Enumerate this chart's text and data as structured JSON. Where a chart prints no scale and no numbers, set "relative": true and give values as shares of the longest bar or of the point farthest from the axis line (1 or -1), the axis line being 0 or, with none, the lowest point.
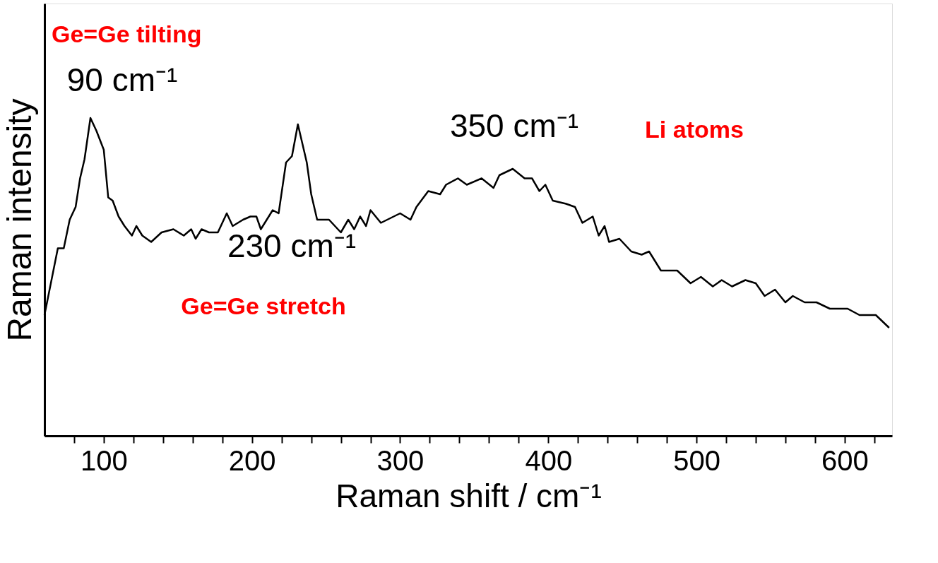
{
  "chart_data": {
    "type": "line",
    "relative": true,
    "xlabel": "Raman shift / cm⁻¹",
    "ylabel": "Raman intensity",
    "xlim": [
      60,
      632
    ],
    "xticks": [
      {
        "value": 80,
        "label": null
      },
      100,
      {
        "value": 120,
        "label": null
      },
      {
        "value": 140,
        "label": null
      },
      {
        "value": 160,
        "label": null
      },
      {
        "value": 180,
        "label": null
      },
      200,
      {
        "value": 220,
        "label": null
      },
      {
        "value": 240,
        "label": null
      },
      {
        "value": 260,
        "label": null
      },
      {
        "value": 280,
        "label": null
      },
      300,
      {
        "value": 320,
        "label": null
      },
      {
        "value": 340,
        "label": null
      },
      {
        "value": 360,
        "label": null
      },
      {
        "value": 380,
        "label": null
      },
      400,
      {
        "value": 420,
        "label": null
      },
      {
        "value": 440,
        "label": null
      },
      {
        "value": 460,
        "label": null
      },
      {
        "value": 480,
        "label": null
      },
      500,
      {
        "value": 520,
        "label": null
      },
      {
        "value": 540,
        "label": null
      },
      {
        "value": 560,
        "label": null
      },
      {
        "value": 580,
        "label": null
      },
      600,
      {
        "value": 620,
        "label": null
      }
    ],
    "x": [
      60,
      69,
      73,
      77,
      81,
      84,
      87,
      91,
      95,
      100,
      103,
      106,
      110,
      114,
      119,
      122,
      126,
      132,
      139,
      147,
      154,
      159,
      162,
      166,
      171,
      177,
      183,
      187,
      194,
      199,
      203,
      206,
      214,
      218,
      223,
      227,
      231,
      234,
      237,
      240,
      244,
      252,
      256,
      260,
      265,
      269,
      273,
      277,
      280,
      287,
      300,
      307,
      311,
      319,
      327,
      331,
      339,
      345,
      355,
      363,
      367,
      376,
      384,
      389,
      394,
      398,
      403,
      412,
      418,
      423,
      430,
      434,
      438,
      441,
      448,
      456,
      463,
      468,
      476,
      487,
      496,
      503,
      511,
      517,
      524,
      533,
      540,
      546,
      553,
      560,
      565,
      573,
      581,
      590,
      602,
      610,
      621,
      630
    ],
    "series": [
      {
        "color": "#000000",
        "values": [
          0.38,
          0.59,
          0.59,
          0.68,
          0.72,
          0.81,
          0.87,
          1.0,
          0.96,
          0.9,
          0.75,
          0.74,
          0.69,
          0.66,
          0.63,
          0.66,
          0.63,
          0.61,
          0.64,
          0.65,
          0.63,
          0.65,
          0.62,
          0.65,
          0.64,
          0.64,
          0.7,
          0.66,
          0.68,
          0.69,
          0.69,
          0.65,
          0.71,
          0.7,
          0.86,
          0.88,
          0.98,
          0.92,
          0.86,
          0.76,
          0.68,
          0.68,
          0.66,
          0.64,
          0.68,
          0.65,
          0.69,
          0.66,
          0.71,
          0.67,
          0.7,
          0.68,
          0.72,
          0.77,
          0.76,
          0.79,
          0.81,
          0.79,
          0.81,
          0.78,
          0.82,
          0.84,
          0.81,
          0.81,
          0.77,
          0.79,
          0.74,
          0.73,
          0.72,
          0.67,
          0.69,
          0.63,
          0.66,
          0.61,
          0.62,
          0.58,
          0.57,
          0.58,
          0.52,
          0.52,
          0.48,
          0.5,
          0.47,
          0.49,
          0.47,
          0.49,
          0.48,
          0.44,
          0.46,
          0.42,
          0.44,
          0.42,
          0.42,
          0.4,
          0.4,
          0.38,
          0.38,
          0.34
        ]
      }
    ],
    "line_style": "solid",
    "marker": "none",
    "grid": false,
    "annotations": [
      "90 cm⁻¹",
      "230 cm⁻¹",
      "350 cm⁻¹",
      "Ge=Ge tilting",
      "Ge=Ge stretch",
      "Li atoms"
    ]
  }
}
